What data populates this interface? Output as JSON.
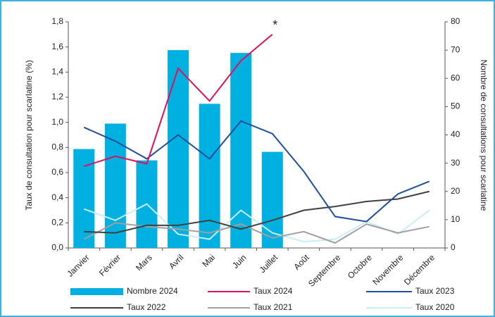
{
  "chart_data": {
    "type": "combo",
    "y_label": "Taux de consultation pour scarlatine (%)",
    "y2_label": "Nombre de consultations pour scarlatine",
    "annotation": "*",
    "categories": [
      "Janvier",
      "Février",
      "Mars",
      "Avril",
      "Mai",
      "Juin",
      "Juillet",
      "Août",
      "Septembre",
      "Octobre",
      "Novembre",
      "Décembre"
    ],
    "ylim": [
      0,
      1.8
    ],
    "yticks": [
      {
        "value": 0,
        "label": "0,0"
      },
      {
        "value": 0.2,
        "label": "0,2"
      },
      {
        "value": 0.4,
        "label": "0,4"
      },
      {
        "value": 0.6,
        "label": "0,6"
      },
      {
        "value": 0.8,
        "label": "0,8"
      },
      {
        "value": 1.0,
        "label": "1,0"
      },
      {
        "value": 1.2,
        "label": "1,2"
      },
      {
        "value": 1.4,
        "label": "1,4"
      },
      {
        "value": 1.6,
        "label": "1,6"
      },
      {
        "value": 1.8,
        "label": "1,8"
      }
    ],
    "y2lim": [
      0,
      80
    ],
    "y2ticks": [
      0,
      10,
      20,
      30,
      40,
      50,
      60,
      70,
      80
    ],
    "series": [
      {
        "name": "Nombre 2024",
        "type": "bar",
        "axis": "y2",
        "color": "#00b0e0",
        "values": [
          35,
          44,
          31,
          70,
          51,
          69,
          34,
          null,
          null,
          null,
          null,
          null
        ]
      },
      {
        "name": "Taux 2024",
        "type": "line",
        "color": "#e0105a",
        "values": [
          0.65,
          0.73,
          0.67,
          1.43,
          1.17,
          1.49,
          1.7,
          null,
          null,
          null,
          null,
          null
        ]
      },
      {
        "name": "Taux 2023",
        "type": "line",
        "color": "#1f4e9a",
        "values": [
          0.96,
          0.85,
          0.71,
          0.9,
          0.71,
          1.01,
          0.91,
          0.61,
          0.25,
          0.21,
          0.43,
          0.53
        ]
      },
      {
        "name": "Taux 2022",
        "type": "line",
        "color": "#404040",
        "values": [
          0.13,
          0.12,
          0.18,
          0.18,
          0.22,
          0.15,
          0.22,
          0.3,
          0.33,
          0.37,
          0.39,
          0.45
        ]
      },
      {
        "name": "Taux 2021",
        "type": "line",
        "color": "#a0a0a0",
        "values": [
          0.07,
          0.2,
          0.17,
          0.15,
          0.12,
          0.19,
          0.08,
          0.13,
          0.04,
          0.19,
          0.12,
          0.17
        ]
      },
      {
        "name": "Taux 2020",
        "type": "line",
        "color": "#c8ecf8",
        "values": [
          0.31,
          0.22,
          0.35,
          0.11,
          0.07,
          0.3,
          0.12,
          0.05,
          0.07,
          0.21,
          0.11,
          0.3
        ]
      }
    ]
  }
}
